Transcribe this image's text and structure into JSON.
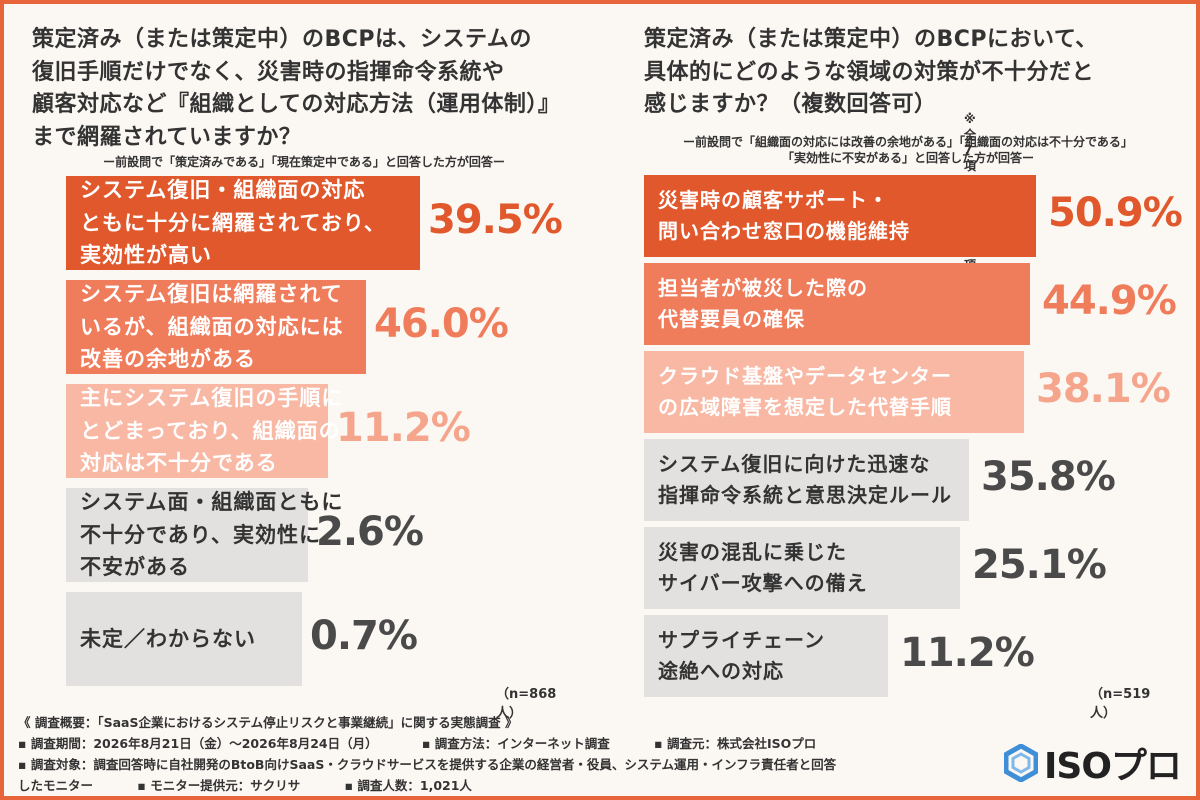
{
  "left_panel": {
    "title": "策定済み（または策定中）のBCPは、システムの\n復旧手順だけでなく、災害時の指揮命令系統や\n顧客対応など『組織としての対応方法（運用体制）』\nまで網羅されていますか？",
    "subtitle": "ー前設問で「策定済みである」「現在策定中である」と回答した方が回答ー",
    "n_label": "（n=868人）"
  },
  "right_panel": {
    "title": "策定済み（または策定中）のBCPにおいて、\n具体的にどのような領域の対策が不十分だと\n感じますか？（複数回答可）",
    "note": "※全7項目中上位6項目を抜粋",
    "subtitle": "ー前設問で「組織面の対応には改善の余地がある」「組織面の対応は不十分である」\n「実効性に不安がある」と回答した方が回答ー",
    "n_label": "（n=519人）"
  },
  "chart_data": [
    {
      "type": "bar",
      "orientation": "horizontal",
      "categories": [
        "システム復旧・組織面の対応\nともに十分に網羅されており、\n実効性が高い",
        "システム復旧は網羅されて\nいるが、組織面の対応には\n改善の余地がある",
        "主にシステム復旧の手順に\nとどまっており、組織面の\n対応は不十分である",
        "システム面・組織面ともに\n不十分であり、実効性に\n不安がある",
        "未定／わからない"
      ],
      "values": [
        39.5,
        46.0,
        11.2,
        2.6,
        0.7
      ],
      "value_labels": [
        "39.5%",
        "46.0%",
        "11.2%",
        "2.6%",
        "0.7%"
      ],
      "bar_colors": [
        "#e0582c",
        "#ef7d5c",
        "#f8b8a4",
        "#e3e1df",
        "#e3e1df"
      ],
      "label_colors": [
        "#ffffff",
        "#ffffff",
        "#ffffff",
        "#333333",
        "#333333"
      ],
      "value_colors": [
        "#e0582c",
        "#ef7d5c",
        "#f5a58b",
        "#4a4a4a",
        "#4a4a4a"
      ],
      "unit": "%"
    },
    {
      "type": "bar",
      "orientation": "horizontal",
      "categories": [
        "災害時の顧客サポート・\n問い合わせ窓口の機能維持",
        "担当者が被災した際の\n代替要員の確保",
        "クラウド基盤やデータセンター\nの広域障害を想定した代替手順",
        "システム復旧に向けた迅速な\n指揮命令系統と意思決定ルール",
        "災害の混乱に乗じた\nサイバー攻撃への備え",
        "サプライチェーン\n途絶への対応"
      ],
      "values": [
        50.9,
        44.9,
        38.1,
        35.8,
        25.1,
        11.2
      ],
      "value_labels": [
        "50.9%",
        "44.9%",
        "38.1%",
        "35.8%",
        "25.1%",
        "11.2%"
      ],
      "bar_colors": [
        "#e0582c",
        "#ef7d5c",
        "#f8b8a4",
        "#e3e1df",
        "#e3e1df",
        "#e3e1df"
      ],
      "label_colors": [
        "#ffffff",
        "#ffffff",
        "#ffffff",
        "#333333",
        "#333333",
        "#333333"
      ],
      "value_colors": [
        "#e0582c",
        "#ef7d5c",
        "#f5a58b",
        "#4a4a4a",
        "#4a4a4a",
        "#4a4a4a"
      ],
      "unit": "%"
    }
  ],
  "footer": {
    "overview": "《 調査概要：「SaaS企業におけるシステム停止リスクと事業継続」に関する実態調査 》",
    "period": "▪ 調査期間：2026年8月21日（金）〜2026年8月24日（月）",
    "method": "▪ 調査方法：インターネット調査",
    "source": "▪ 調査元：株式会社ISOプロ",
    "target_line1": "▪ 調査対象：調査回答時に自社開発のBtoB向けSaaS・クラウドサービスを提供する企業の経営者・役員、システム運用・インフラ責任者と回答",
    "target_line2": "したモニター",
    "provider": "▪ モニター提供元：サクリサ",
    "count": "▪ 調査人数：1,021人"
  },
  "logo": {
    "text": "ISOプロ",
    "icon": "hexagon-logo-icon",
    "color": "#3f8fd8"
  }
}
